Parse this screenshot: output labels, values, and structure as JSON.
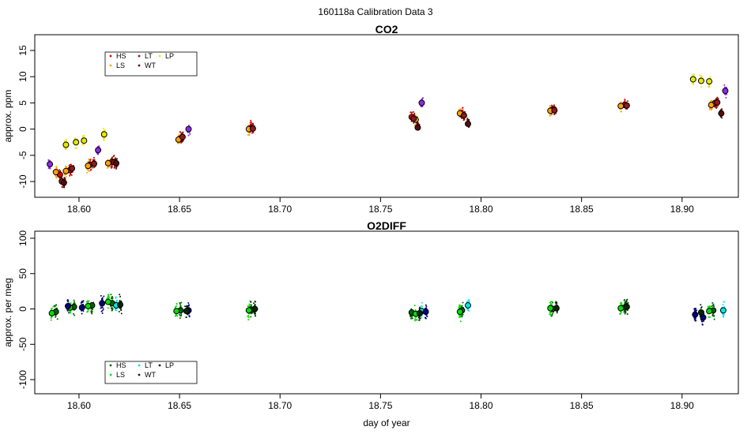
{
  "page_title": "160118a   Calibration Data 3",
  "chart_data": [
    {
      "type": "scatter",
      "title": "CO2",
      "xlabel": "",
      "ylabel": "approx. ppm",
      "xlim": [
        18.578,
        18.928
      ],
      "ylim": [
        -13,
        18
      ],
      "xticks": [
        18.6,
        18.65,
        18.7,
        18.75,
        18.8,
        18.85,
        18.9
      ],
      "xtick_labels": [
        "18.60",
        "18.65",
        "18.70",
        "18.75",
        "18.80",
        "18.85",
        "18.90"
      ],
      "yticks": [
        -10,
        -5,
        0,
        5,
        10,
        15
      ],
      "ytick_labels": [
        "-10",
        "-5",
        "0",
        "5",
        "10",
        "15"
      ],
      "grid": false,
      "legend": {
        "placement": "top-left",
        "entries": [
          {
            "label": "HS",
            "color": "#dd0000"
          },
          {
            "label": "LT",
            "color": "#8e1a1a"
          },
          {
            "label": "LP",
            "color": "#e8e800"
          },
          {
            "label": "LS",
            "color": "#ffa500"
          },
          {
            "label": "WT",
            "color": "#5a0a0a"
          }
        ]
      },
      "series": [
        {
          "name": "HS",
          "color": "#dd0000",
          "x": [
            18.5905,
            18.5955,
            18.6055,
            18.6165,
            18.6505,
            18.6855,
            18.7655,
            18.7905,
            18.8355,
            18.8715,
            18.9165
          ],
          "y": [
            -8.7,
            -7.8,
            -6.8,
            -6.2,
            -1.8,
            0.2,
            2.3,
            2.8,
            3.7,
            4.6,
            5.0
          ]
        },
        {
          "name": "LS",
          "color": "#ffa500",
          "x": [
            18.5885,
            18.5935,
            18.6045,
            18.6145,
            18.6495,
            18.6845,
            18.7675,
            18.7895,
            18.8345,
            18.8695,
            18.9145
          ],
          "y": [
            -8.2,
            -8.0,
            -7.0,
            -6.5,
            -2.0,
            0.0,
            1.8,
            3.0,
            3.5,
            4.4,
            4.6
          ]
        },
        {
          "name": "LT",
          "color": "#8e1a1a",
          "x": [
            18.5915,
            18.5965,
            18.6075,
            18.6175,
            18.6515,
            18.6865,
            18.7665,
            18.7915,
            18.8365,
            18.8725,
            18.9175
          ],
          "y": [
            -10.0,
            -7.5,
            -6.6,
            -6.3,
            -1.5,
            0.1,
            2.0,
            2.6,
            3.6,
            4.5,
            5.1
          ]
        },
        {
          "name": "LP",
          "color": "#e8e800",
          "x": [
            18.5935,
            18.5985,
            18.6025,
            18.6125,
            18.9055,
            18.9095,
            18.9135
          ],
          "y": [
            -3.0,
            -2.5,
            -2.2,
            -1.0,
            9.5,
            9.2,
            9.1
          ]
        },
        {
          "name": "WT",
          "color": "#5a0a0a",
          "x": [
            18.5925,
            18.6185,
            18.7685,
            18.7935,
            18.9195
          ],
          "y": [
            -10.2,
            -6.5,
            0.3,
            1.0,
            3.0
          ]
        },
        {
          "name": "",
          "color": "#8a2be2",
          "x": [
            18.5855,
            18.6095,
            18.6545,
            18.7705,
            18.9215
          ],
          "y": [
            -6.7,
            -4.0,
            0.0,
            5.0,
            7.3
          ]
        }
      ]
    },
    {
      "type": "scatter",
      "title": "O2DIFF",
      "xlabel": "day of year",
      "ylabel": "approx. per meg",
      "xlim": [
        18.578,
        18.928
      ],
      "ylim": [
        -120,
        110
      ],
      "xticks": [
        18.6,
        18.65,
        18.7,
        18.75,
        18.8,
        18.85,
        18.9
      ],
      "xtick_labels": [
        "18.60",
        "18.65",
        "18.70",
        "18.75",
        "18.80",
        "18.85",
        "18.90"
      ],
      "yticks": [
        -100,
        -50,
        0,
        50,
        100
      ],
      "ytick_labels": [
        "-100",
        "-50",
        "0",
        "50",
        "100"
      ],
      "grid": false,
      "legend": {
        "placement": "bottom-left",
        "entries": [
          {
            "label": "HS",
            "color": "#006400"
          },
          {
            "label": "LT",
            "color": "#00e8e8"
          },
          {
            "label": "LP",
            "color": "#000080"
          },
          {
            "label": "LS",
            "color": "#00dd00"
          },
          {
            "label": "WT",
            "color": "#002a00"
          }
        ]
      },
      "series": [
        {
          "name": "HS",
          "color": "#006400",
          "x": [
            18.5885,
            18.5975,
            18.6065,
            18.6165,
            18.6505,
            18.6855,
            18.7655,
            18.7905,
            18.8355,
            18.8715,
            18.9155
          ],
          "y": [
            -4,
            3,
            5,
            8,
            -2,
            -1,
            -5,
            -2,
            0,
            2,
            -2
          ]
        },
        {
          "name": "LS",
          "color": "#00dd00",
          "x": [
            18.5865,
            18.5955,
            18.6045,
            18.6145,
            18.6485,
            18.6845,
            18.7675,
            18.7895,
            18.8345,
            18.8695,
            18.9135
          ],
          "y": [
            -6,
            2,
            4,
            10,
            -3,
            -2,
            -7,
            -4,
            1,
            1,
            -3
          ]
        },
        {
          "name": "LT",
          "color": "#00e8e8",
          "x": [
            18.6185,
            18.7705,
            18.7935,
            18.9205
          ],
          "y": [
            5,
            -3,
            5,
            -2
          ]
        },
        {
          "name": "LP",
          "color": "#000080",
          "x": [
            18.5945,
            18.6015,
            18.6115,
            18.6545,
            18.7725,
            18.9065,
            18.9105
          ],
          "y": [
            4,
            2,
            8,
            -2,
            -4,
            -8,
            -12
          ]
        },
        {
          "name": "WT",
          "color": "#002a00",
          "x": [
            18.6205,
            18.6535,
            18.6875,
            18.7695,
            18.8375,
            18.8725,
            18.9095
          ],
          "y": [
            6,
            -3,
            0,
            -6,
            1,
            3,
            -5
          ]
        }
      ]
    }
  ]
}
